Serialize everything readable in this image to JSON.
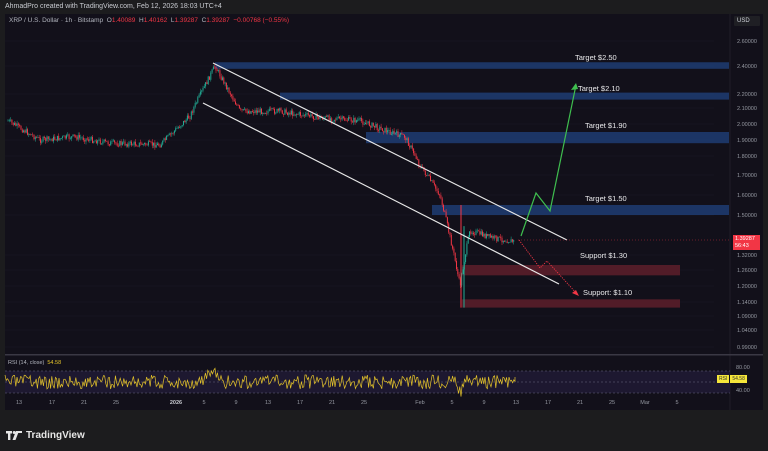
{
  "credit": "AhmadPro created with TradingView.com, Feb 12, 2026 18:03 UTC+4",
  "legend": {
    "symbol": "XRP / U.S. Dollar · 1h · Bitstamp",
    "open_label": "O",
    "open": "1.40089",
    "high_label": "H",
    "high": "1.40162",
    "low_label": "L",
    "low": "1.39287",
    "close_label": "C",
    "close": "1.39287",
    "change": "−0.00768 (−0.55%)"
  },
  "currency": "USD",
  "price_badge": {
    "price": "1.39287",
    "countdown": "56:43",
    "color": "#f23645"
  },
  "rsi": {
    "title": "RSI (14, close)",
    "value": "54.58",
    "badge_label": "RSI",
    "levels": [
      "80.00",
      "40.00"
    ]
  },
  "brand": "TradingView",
  "chart_data": {
    "type": "line",
    "title": "XRP / U.S. Dollar · 1h · Bitstamp",
    "ylabel": "USD",
    "y_ticks": [
      2.6,
      2.4,
      2.2,
      2.1,
      2.0,
      1.9,
      1.8,
      1.7,
      1.6,
      1.5,
      1.32,
      1.26,
      1.2,
      1.14,
      1.09,
      1.04,
      0.99
    ],
    "x_ticks": [
      "13",
      "17",
      "21",
      "25",
      "2026",
      "5",
      "9",
      "13",
      "17",
      "21",
      "25",
      "Feb",
      "5",
      "9",
      "13",
      "17",
      "21",
      "25",
      "Mar",
      "5"
    ],
    "ylim": [
      0.97,
      2.68
    ],
    "approx_close_series": {
      "x": [
        "Dec 12",
        "Dec 17",
        "Dec 21",
        "Dec 25",
        "Jan 1",
        "Jan 4",
        "Jan 6",
        "Jan 9",
        "Jan 13",
        "Jan 17",
        "Jan 21",
        "Jan 25",
        "Jan 29",
        "Feb 2",
        "Feb 4",
        "Feb 5",
        "Feb 6",
        "Feb 8",
        "Feb 10",
        "Feb 12"
      ],
      "values": [
        2.02,
        1.9,
        1.92,
        1.88,
        1.87,
        2.05,
        2.4,
        2.08,
        2.08,
        2.04,
        2.02,
        1.95,
        1.92,
        1.75,
        1.6,
        1.2,
        1.43,
        1.4,
        1.38,
        1.39
      ]
    },
    "zones": [
      {
        "label": "Target $2.50",
        "low": 2.38,
        "high": 2.43,
        "color": "#1e3a6e"
      },
      {
        "label": "Target $2.10",
        "low": 2.16,
        "high": 2.21,
        "color": "#1e3a6e"
      },
      {
        "label": "Target $1.90",
        "low": 1.88,
        "high": 1.95,
        "color": "#1e3a6e"
      },
      {
        "label": "Target $1.50",
        "low": 1.5,
        "high": 1.55,
        "color": "#1e3a6e"
      },
      {
        "label": "Support $1.30",
        "low": 1.24,
        "high": 1.28,
        "color": "#5a1e2a"
      },
      {
        "label": "Support: $1.10",
        "low": 1.12,
        "high": 1.15,
        "color": "#5a1e2a"
      }
    ],
    "channel": {
      "upper": [
        [
          "Jan 6",
          2.42
        ],
        [
          "Feb 15",
          1.37
        ]
      ],
      "lower": [
        [
          "Jan 4",
          2.15
        ],
        [
          "Feb 12",
          1.2
        ]
      ],
      "color": "#e8e8e8"
    },
    "projections": [
      {
        "name": "bullish",
        "color": "#3fbf4f",
        "points": [
          1.39,
          1.62,
          1.52,
          2.18
        ]
      },
      {
        "name": "bearish",
        "color": "#f23645",
        "style": "dotted",
        "points": [
          1.39,
          1.27,
          1.3,
          1.13
        ]
      }
    ],
    "rsi_series": {
      "name": "RSI (14, close)",
      "last": 54.58,
      "upper": 80,
      "lower": 40,
      "color": "#e5c42a"
    }
  }
}
